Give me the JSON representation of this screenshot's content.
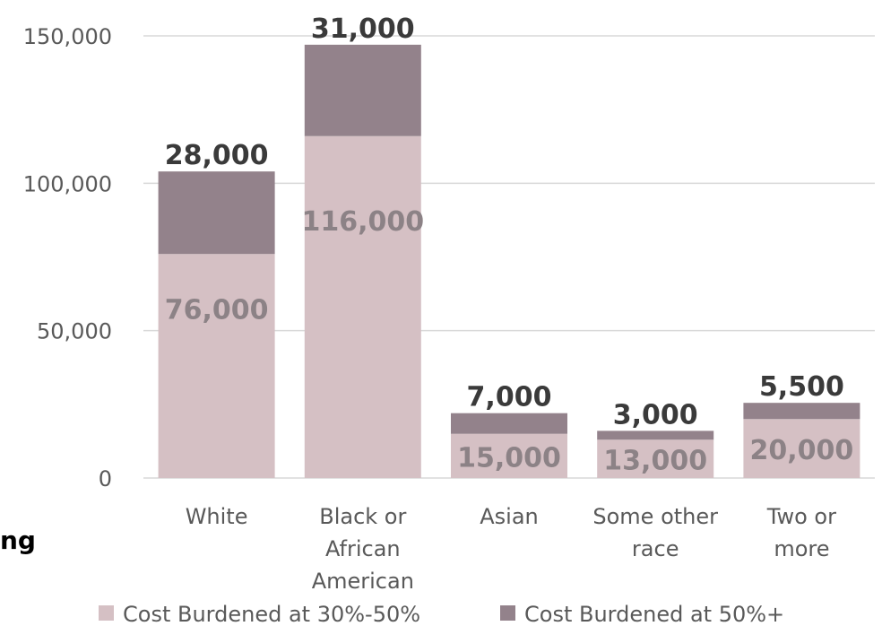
{
  "side_fragment": "ng",
  "chart_data": {
    "type": "bar",
    "stacked": true,
    "categories": [
      [
        "White"
      ],
      [
        "Black or",
        "African",
        "American"
      ],
      [
        "Asian"
      ],
      [
        "Some other",
        "race"
      ],
      [
        "Two or",
        "more"
      ]
    ],
    "series": [
      {
        "name": "Cost Burdened at 30%-50%",
        "color": "#d5c0c4",
        "values": [
          76000,
          116000,
          15000,
          13000,
          20000
        ],
        "labels": [
          "76,000",
          "116,000",
          "15,000",
          "13,000",
          "20,000"
        ]
      },
      {
        "name": "Cost Burdened at 50%+",
        "color": "#93828b",
        "values": [
          28000,
          31000,
          7000,
          3000,
          5500
        ],
        "labels": [
          "28,000",
          "31,000",
          "7,000",
          "3,000",
          "5,500"
        ]
      }
    ],
    "ylim": [
      0,
      150000
    ],
    "yticks": [
      {
        "value": 0,
        "label": "0"
      },
      {
        "value": 50000,
        "label": "50,000"
      },
      {
        "value": 100000,
        "label": "100,000"
      },
      {
        "value": 150000,
        "label": "150,000"
      }
    ],
    "grid": true,
    "gridColor": "#d9d9d9",
    "legend": "bottom"
  }
}
